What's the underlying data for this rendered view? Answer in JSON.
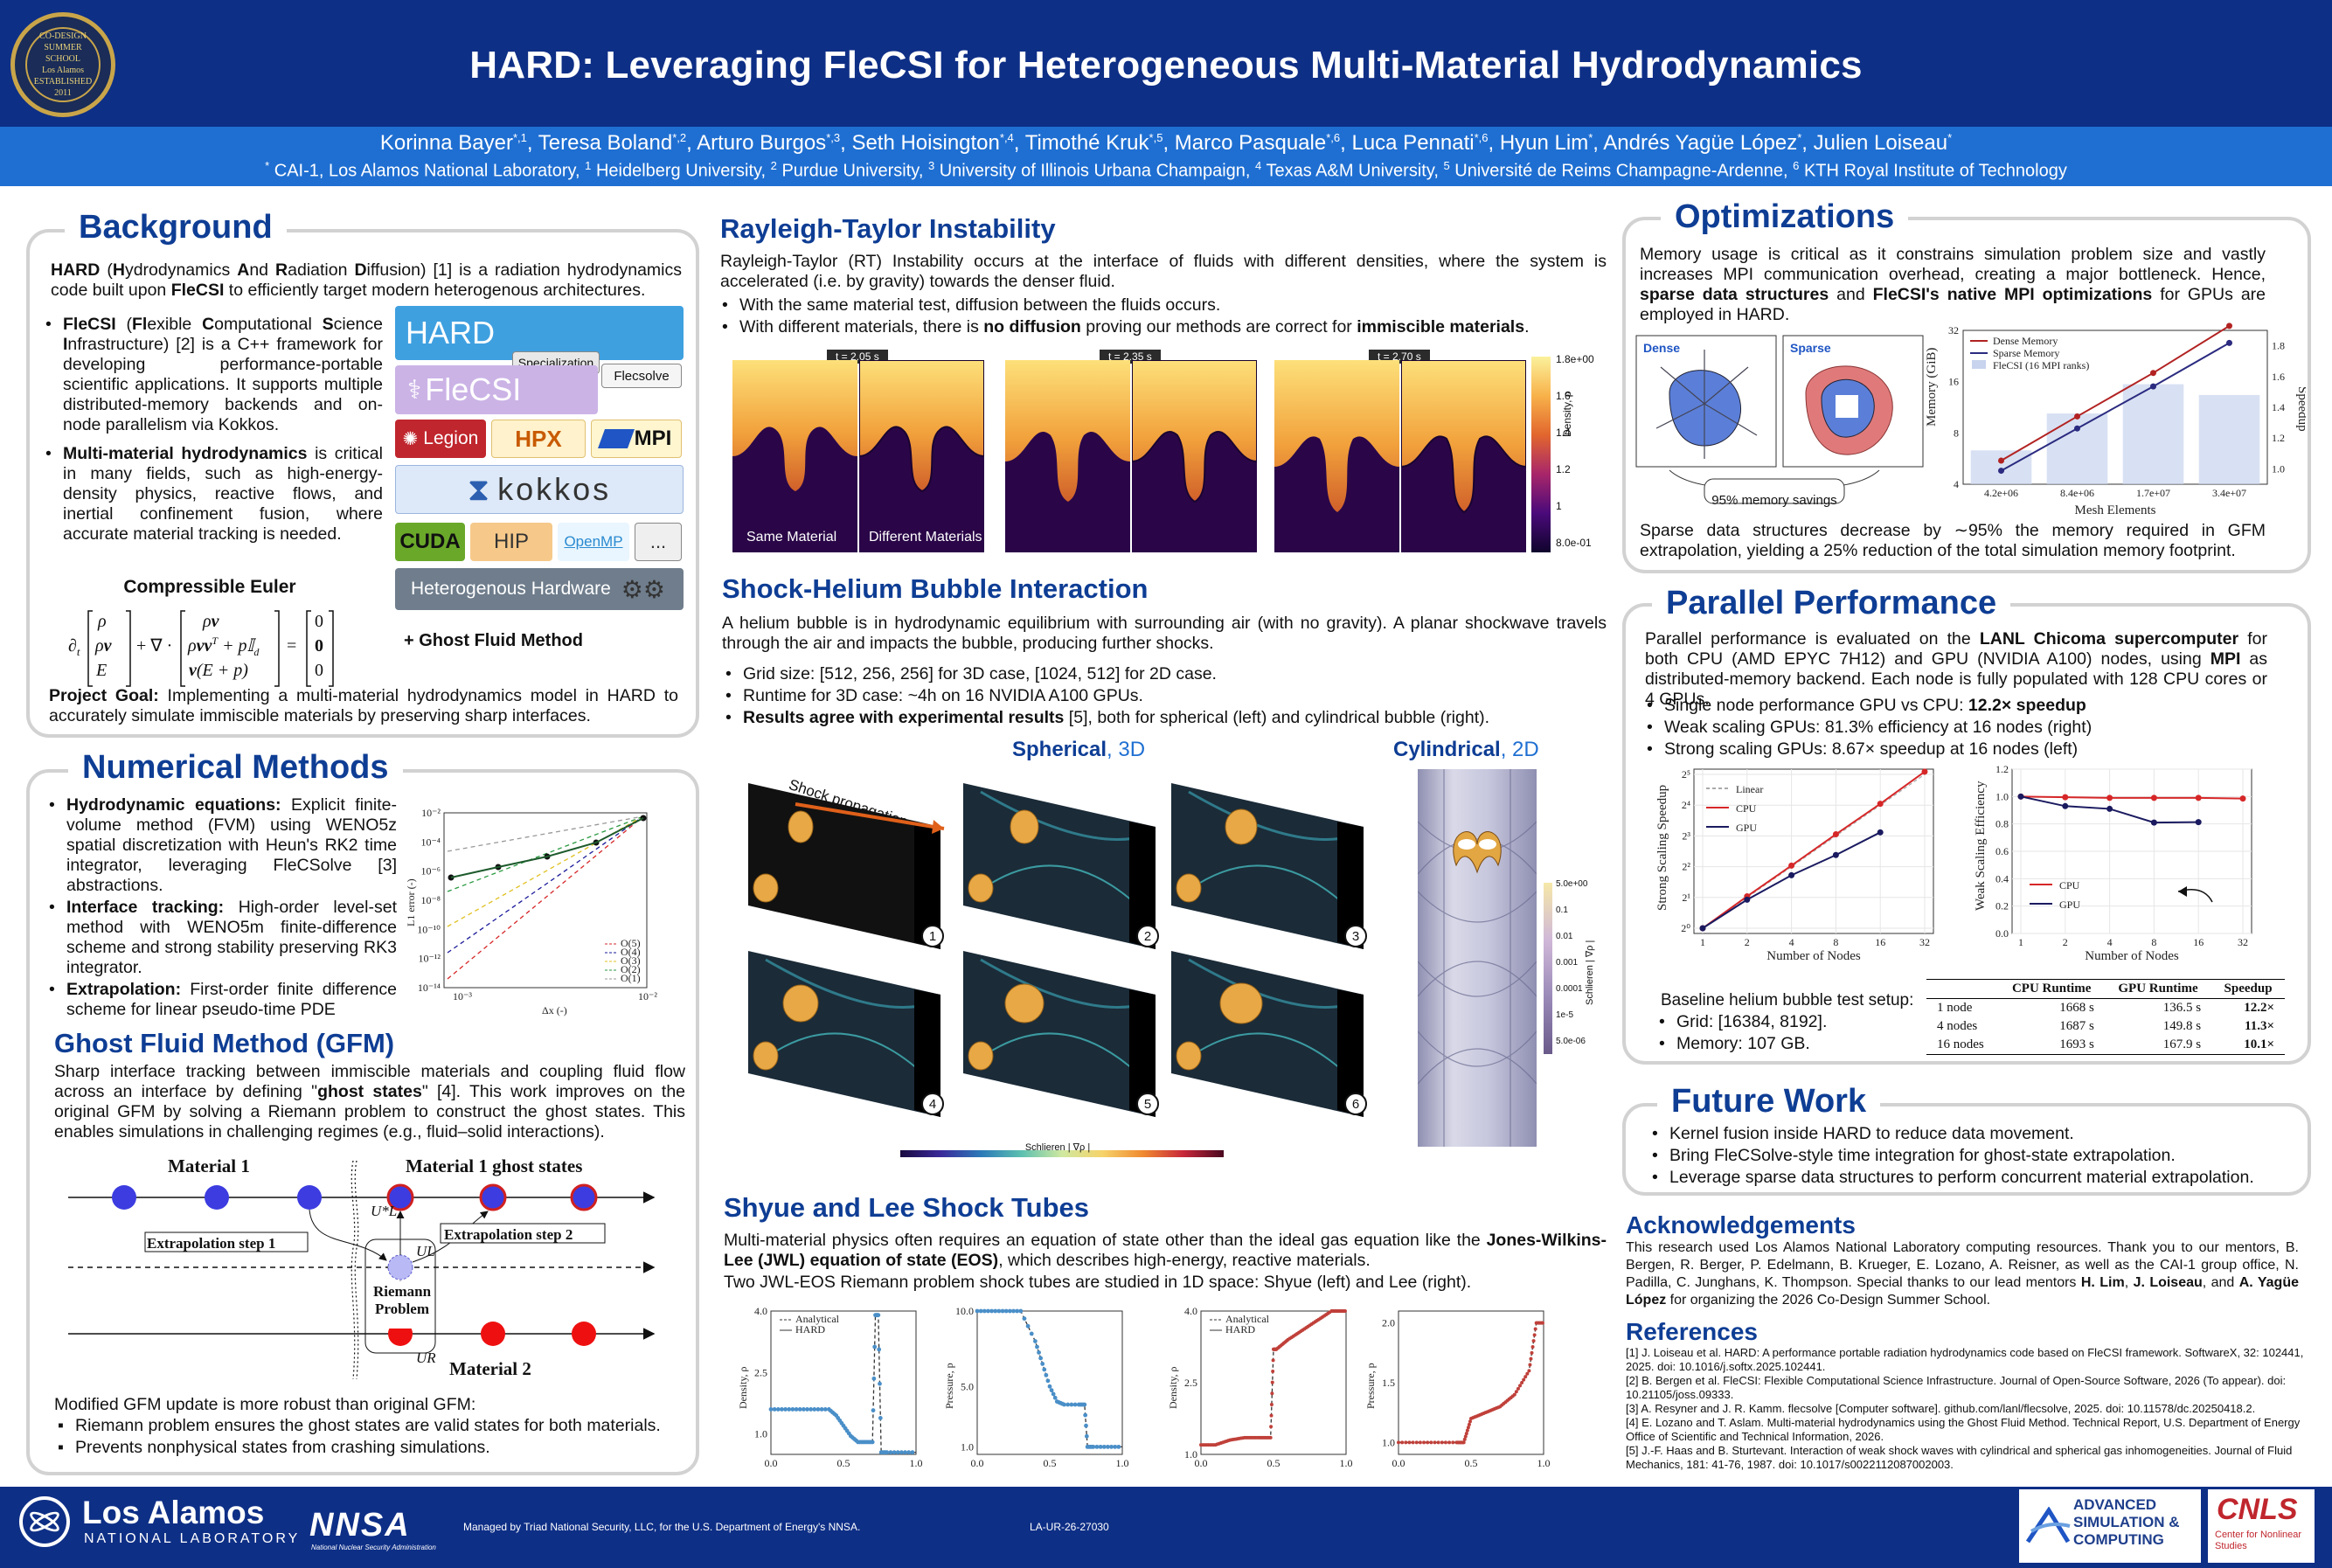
{
  "header": {
    "seal_text": [
      "CO-DESIGN SUMMER SCHOOL",
      "Los Alamos",
      "ESTABLISHED 2011"
    ],
    "title": "HARD: Leveraging FleCSI for Heterogeneous Multi-Material Hydrodynamics",
    "authors": [
      {
        "name": "Korinna Bayer",
        "sup": "*,1"
      },
      {
        "name": "Teresa Boland",
        "sup": "*,2"
      },
      {
        "name": "Arturo Burgos",
        "sup": "*,3"
      },
      {
        "name": "Seth Hoisington",
        "sup": "*,4"
      },
      {
        "name": "Timothé Kruk",
        "sup": "*,5"
      },
      {
        "name": "Marco Pasquale",
        "sup": "*,6"
      },
      {
        "name": "Luca Pennati",
        "sup": "*,6"
      },
      {
        "name": "Hyun Lim",
        "sup": "*"
      },
      {
        "name": "Andrés Yagüe López",
        "sup": "*"
      },
      {
        "name": "Julien Loiseau",
        "sup": "*"
      }
    ],
    "affiliations": [
      {
        "sup": "*",
        "name": "CAI-1, Los Alamos National Laboratory"
      },
      {
        "sup": "1",
        "name": "Heidelberg University"
      },
      {
        "sup": "2",
        "name": "Purdue University"
      },
      {
        "sup": "3",
        "name": "University of Illinois Urbana Champaign"
      },
      {
        "sup": "4",
        "name": "Texas A&M University"
      },
      {
        "sup": "5",
        "name": "Université de Reims Champagne-Ardenne"
      },
      {
        "sup": "6",
        "name": "KTH Royal Institute of Technology"
      }
    ]
  },
  "background": {
    "heading": "Background",
    "intro_html": "<b>HARD</b> (<b>H</b>ydrodynamics <b>A</b>nd <b>R</b>adiation <b>D</b>iffusion) [1] is a radiation hydrodynamics code built upon <b>FleCSI</b> to efficiently target modern heterogenous architectures.",
    "bullet1_html": "<b>FleCSI</b> (<b>Fl</b>exible <b>C</b>omputational <b>S</b>cience <b>I</b>nfrastructure) [2] is a C++ framework for developing performance-portable scientific applications. It supports multiple distributed-memory backends and on-node parallelism via Kokkos.",
    "bullet2_html": "<b>Multi-material hydrodynamics</b> is critical in many fields, such as high-energy-density physics, reactive flows, and inertial confinement fusion, where accurate material tracking is needed.",
    "euler_heading": "Compressible Euler",
    "equation": {
      "lhs": "∂t [ρ; ρv; E] + ∇ · [ρv; ρvvᵀ + pI̲d; v(E + p)] = [0; 0; 0]",
      "rhs_note": "+ Ghost Fluid Method"
    },
    "goal_html": "<b>Project Goal:</b> Implementing a multi-material hydrodynamics model in HARD to accurately simulate immiscible materials by preserving sharp interfaces.",
    "stack": {
      "hard": "HARD",
      "specialization": "Specialization",
      "flecsolve": "Flecsolve",
      "flecsi": "FleCSI",
      "legion": "Legion",
      "hpx": "HPX",
      "mpi": "MPI",
      "kokkos": "kokkos",
      "cuda": "CUDA",
      "hip": "HIP",
      "openmp": "OpenMP",
      "more": "...",
      "hardware": "Heterogenous Hardware"
    }
  },
  "numerical": {
    "heading": "Numerical Methods",
    "bullets": [
      "<b>Hydrodynamic equations:</b> Explicit finite-volume method (FVM) using WENO5z spatial discretization with Heun's RK2 time integrator, leveraging FleCSolve [3] abstractions.",
      "<b>Interface tracking:</b> High-order level-set method with WENO5m finite-difference scheme and strong stability preserving RK3 integrator.",
      "<b>Extrapolation:</b> First-order finite difference scheme for linear pseudo-time PDE"
    ],
    "conv_plot": {
      "ylabel": "L1 error (-)",
      "xlabel": "Δx (-)",
      "yticks": [
        "10⁻²",
        "10⁻⁴",
        "10⁻⁶",
        "10⁻⁸",
        "10⁻¹⁰",
        "10⁻¹²",
        "10⁻¹⁴"
      ],
      "xticks": [
        "10⁻³",
        "10⁻²"
      ],
      "legend": [
        "O(5)",
        "O(4)",
        "O(3)",
        "O(2)",
        "O(1)"
      ]
    }
  },
  "gfm": {
    "heading": "Ghost Fluid Method (GFM)",
    "text_html": "Sharp interface tracking between immiscible materials and coupling fluid flow across an interface by defining \"<b>ghost states</b>\" [4]. This work improves on the original GFM by solving a Riemann problem to construct the ghost states. This enables simulations in challenging regimes (e.g., fluid–solid interactions).",
    "diagram": {
      "material1": "Material 1",
      "ghost": "Material 1 ghost states",
      "extrap1": "Extrapolation step 1",
      "extrap2": "Extrapolation step 2",
      "riemann": "Riemann Problem",
      "material2": "Material 2",
      "ul_star": "U*L",
      "ul": "UL",
      "ur": "UR"
    },
    "conclusion": "Modified GFM update is more robust than original GFM:",
    "bullets": [
      "Riemann problem ensures the ghost states are valid states for both materials.",
      "Prevents nonphysical states from crashing simulations."
    ]
  },
  "rt": {
    "heading": "Rayleigh-Taylor Instability",
    "text": "Rayleigh-Taylor (RT) Instability occurs at the interface of fluids with different densities, where the system is accelerated (i.e. by gravity) towards the denser fluid.",
    "bullets": [
      "With the same material test, diffusion between the fluids occurs.",
      "With different materials, there is <b>no diffusion</b> proving our methods are correct for <b>immiscible materials</b>."
    ],
    "times": [
      "t = 2.05 s",
      "t = 2.35 s",
      "t = 2.70 s"
    ],
    "label_same": "Same Material",
    "label_diff": "Different Materials",
    "colorbar_ticks": [
      "1.8e+00",
      "1.6",
      "1.4",
      "1.2",
      "1",
      "8.0e-01"
    ],
    "colorbar_label": "Density, ρ"
  },
  "shock": {
    "heading": "Shock-Helium Bubble Interaction",
    "text": "A helium bubble is in hydrodynamic equilibrium with surrounding air (with no gravity). A planar shockwave travels through the air and impacts the bubble, producing further shocks.",
    "bullets": [
      "Grid size: [512, 256, 256] for 3D case, [1024, 512] for 2D case.",
      "Runtime for 3D case: ~4h on 16 NVIDIA A100 GPUs.",
      "<b>Results agree with experimental results</b> [5], both for spherical (left) and cylindrical bubble (right)."
    ],
    "spherical": "Spherical",
    "spherical_dim": ", 3D",
    "cylindrical": "Cylindrical",
    "cylindrical_dim": ", 2D",
    "propagation": "Shock propagation",
    "panel_numbers": [
      "1",
      "2",
      "3",
      "4",
      "5",
      "6"
    ],
    "schlieren_label": "Schlieren | ∇ρ |",
    "schlieren_ticks": [
      "5.0e+00",
      "0.1",
      "0.01",
      "0.001",
      "0.0001",
      "1e-5",
      "5.0e-06"
    ]
  },
  "shocktubes": {
    "heading": "Shyue and Lee Shock Tubes",
    "text_html": "Multi-material physics often requires an equation of state other than the ideal gas equation like the <b>Jones-Wilkins-Lee (JWL) equation of state (EOS)</b>, which describes high-energy, reactive materials.",
    "text2": "Two JWL-EOS Riemann problem shock tubes are studied in 1D space: Shyue (left) and Lee (right).",
    "legend": [
      "Analytical",
      "HARD"
    ],
    "ylabels": [
      "Density, ρ",
      "Pressure, p",
      "Density, ρ",
      "Pressure, p"
    ],
    "xticks": [
      "0.0",
      "0.5",
      "1.0"
    ]
  },
  "optimizations": {
    "heading": "Optimizations",
    "text_html": "Memory usage is critical as it constrains simulation problem size and vastly increases MPI communication overhead, creating a major bottleneck. Hence, <b>sparse data structures</b> and <b>FleCSI's native MPI optimizations</b> for GPUs are employed in HARD.",
    "dense": "Dense",
    "sparse": "Sparse",
    "savings": "95% memory savings",
    "result_text": "Sparse data structures decrease by ∼95% the memory required in GFM extrapolation, yielding a 25% reduction of the total simulation memory footprint."
  },
  "parallel": {
    "heading": "Parallel Performance",
    "text_html": "Parallel performance is evaluated on the <b>LANL Chicoma supercomputer</b> for both CPU (AMD EPYC 7H12) and GPU (NVIDIA A100) nodes, using <b>MPI</b> as distributed-memory backend. Each node is fully populated with 128 CPU cores or 4 GPUs.",
    "bullets": [
      "Single node performance GPU vs CPU: <b>12.2× speedup</b>",
      "Weak scaling GPUs: 81.3% efficiency at 16 nodes (right)",
      "Strong scaling GPUs: 8.67× speedup at 16 nodes (left)"
    ],
    "baseline_heading": "Baseline helium bubble test setup:",
    "baseline": [
      "Grid: [16384, 8192].",
      "Memory: 107 GB."
    ],
    "table": {
      "headers": [
        "",
        "CPU Runtime",
        "GPU Runtime",
        "Speedup"
      ],
      "rows": [
        [
          "1 node",
          "1668 s",
          "136.5 s",
          "12.2×"
        ],
        [
          "4 nodes",
          "1687 s",
          "149.8 s",
          "11.3×"
        ],
        [
          "16 nodes",
          "1693 s",
          "167.9 s",
          "10.1×"
        ]
      ]
    }
  },
  "future": {
    "heading": "Future Work",
    "bullets": [
      "Kernel fusion inside HARD to reduce data movement.",
      "Bring FleCSolve-style time integration for ghost-state extrapolation.",
      "Leverage sparse data structures to perform concurrent material extrapolation."
    ]
  },
  "ack": {
    "heading": "Acknowledgements",
    "text_html": "This research used Los Alamos National Laboratory computing resources. Thank you to our mentors, B. Bergen, R. Berger, P. Edelmann, B. Krueger, E. Lozano, A. Reisner, as well as the CAI-1 group office, N. Padilla, C. Junghans, K. Thompson. Special thanks to our lead mentors <b>H. Lim</b>, <b>J. Loiseau</b>, and <b>A. Yagüe López</b> for organizing the 2026 Co-Design Summer School."
  },
  "refs": {
    "heading": "References",
    "items": [
      "[1] J. Loiseau et al. HARD: A performance portable radiation hydrodynamics code based on FleCSI framework. SoftwareX, 32: 102441, 2025. doi: 10.1016/j.softx.2025.102441.",
      "[2] B. Bergen et al. FleCSI: Flexible Computational Science Infrastructure. Journal of Open-Source Software, 2026 (To appear). doi: 10.21105/joss.09333.",
      "[3] A. Resyner and J. R. Kamm. flecsolve [Computer software]. github.com/lanl/flecsolve, 2025. doi: 10.11578/dc.20250418.2.",
      "[4] E. Lozano and T. Aslam. Multi-material hydrodynamics using the Ghost Fluid Method. Technical Report, U.S. Department of Energy Office of Scientific and Technical Information, 2026.",
      "[5] J.-F. Haas and B. Sturtevant. Interaction of weak shock waves with cylindrical and spherical gas inhomogeneities. Journal of Fluid Mechanics, 181: 41-76, 1987. doi: 10.1017/s0022112087002003."
    ]
  },
  "footer": {
    "lanl": "Los Alamos",
    "lanl_sub": "NATIONAL LABORATORY",
    "nnsa": "NNSA",
    "nnsa_sub": "National Nuclear Security Administration",
    "managed": "Managed by Triad National Security, LLC, for the U.S. Department of Energy's NNSA.",
    "la_ur": "LA-UR-26-27030",
    "asc": "Advanced Simulation & Computing",
    "cnls": "CNLS",
    "cnls_sub": "Center for Nonlinear Studies"
  },
  "chart_data": [
    {
      "id": "memory",
      "type": "bar",
      "categories": [
        "4.2e+06",
        "8.4e+06",
        "1.7e+07",
        "3.4e+07"
      ],
      "xlabel": "Mesh Elements",
      "ylabel": "Memory (GiB)",
      "y2label": "Speedup",
      "yticks": [
        "4",
        "8",
        "16",
        "32"
      ],
      "y2ticks": [
        "1.0",
        "1.2",
        "1.4",
        "1.6",
        "1.8"
      ],
      "series": [
        {
          "name": "Dense Memory",
          "values": [
            5.5,
            10,
            18,
            34
          ],
          "color": "#b22222"
        },
        {
          "name": "Sparse Memory",
          "values": [
            4.8,
            8.5,
            15,
            27
          ],
          "color": "#2b2b80"
        },
        {
          "name": "FleCSI (16 MPI ranks)",
          "values": [
            1.12,
            1.36,
            1.55,
            1.48
          ],
          "color": "#c8d4ee"
        }
      ]
    },
    {
      "id": "strong",
      "type": "line",
      "x": [
        1,
        2,
        4,
        8,
        16,
        32
      ],
      "xlabel": "Number of Nodes",
      "ylabel": "Strong Scaling Speedup",
      "xticks": [
        "1",
        "2",
        "4",
        "8",
        "16",
        "32"
      ],
      "yticks": [
        "2⁰",
        "2¹",
        "2²",
        "2³",
        "2⁴",
        "2⁵"
      ],
      "series": [
        {
          "name": "Linear",
          "values": [
            1,
            2,
            4,
            8,
            16,
            32
          ],
          "color": "#aaaaaa"
        },
        {
          "name": "CPU",
          "values": [
            1,
            2.05,
            4.1,
            8.3,
            16.5,
            34
          ],
          "color": "#d62728"
        },
        {
          "name": "GPU",
          "values": [
            1,
            1.9,
            3.3,
            5.2,
            8.67,
            null
          ],
          "color": "#1a1a60"
        }
      ]
    },
    {
      "id": "weak",
      "type": "line",
      "x": [
        1,
        2,
        4,
        8,
        16,
        32
      ],
      "xlabel": "Number of Nodes",
      "ylabel": "Weak Scaling Efficiency",
      "xticks": [
        "1",
        "2",
        "4",
        "8",
        "16",
        "32"
      ],
      "yticks": [
        "0.0",
        "0.2",
        "0.4",
        "0.6",
        "0.8",
        "1.0",
        "1.2"
      ],
      "series": [
        {
          "name": "CPU",
          "values": [
            1.0,
            0.995,
            0.99,
            0.99,
            0.99,
            0.985
          ],
          "color": "#d62728"
        },
        {
          "name": "GPU",
          "values": [
            1.0,
            0.93,
            0.91,
            0.81,
            0.813,
            null
          ],
          "color": "#1a1a60"
        }
      ]
    },
    {
      "id": "shyue_density",
      "type": "line",
      "ylim": [
        0.5,
        4.0
      ],
      "yticks": [
        "1.0",
        "2.5",
        "4.0"
      ],
      "xticks": [
        "0.0",
        "0.5",
        "1.0"
      ],
      "x": [
        0,
        0.1,
        0.2,
        0.3,
        0.4,
        0.45,
        0.5,
        0.55,
        0.6,
        0.65,
        0.7,
        0.72,
        0.74,
        0.76,
        0.8,
        0.9,
        1.0
      ],
      "series": [
        {
          "name": "Analytical",
          "values": [
            1.6,
            1.6,
            1.6,
            1.6,
            1.6,
            1.45,
            1.2,
            0.95,
            0.8,
            0.8,
            0.8,
            3.9,
            3.9,
            0.55,
            0.55,
            0.55,
            0.55
          ]
        }
      ]
    },
    {
      "id": "shyue_pressure",
      "type": "line",
      "ylim": [
        0.5,
        10
      ],
      "yticks": [
        "1.0",
        "5.0",
        "10.0"
      ],
      "xticks": [
        "0.0",
        "0.5",
        "1.0"
      ],
      "x": [
        0,
        0.1,
        0.2,
        0.3,
        0.4,
        0.45,
        0.5,
        0.55,
        0.6,
        0.7,
        0.74,
        0.76,
        0.8,
        0.9,
        1.0
      ],
      "series": [
        {
          "name": "Analytical",
          "values": [
            10,
            10,
            10,
            10,
            8,
            6.5,
            5,
            4,
            3.8,
            3.8,
            3.8,
            1,
            1,
            1,
            1
          ]
        }
      ]
    },
    {
      "id": "lee_density",
      "type": "line",
      "ylim": [
        1.0,
        4.0
      ],
      "yticks": [
        "1.0",
        "2.5",
        "4.0"
      ],
      "xticks": [
        "0.0",
        "0.5",
        "1.0"
      ],
      "x": [
        0,
        0.1,
        0.2,
        0.3,
        0.4,
        0.48,
        0.5,
        0.52,
        0.6,
        0.7,
        0.8,
        0.9,
        0.95,
        1.0
      ],
      "series": [
        {
          "name": "Analytical",
          "values": [
            1.2,
            1.2,
            1.3,
            1.35,
            1.35,
            1.35,
            3.2,
            3.2,
            3.4,
            3.6,
            3.8,
            4.0,
            4.0,
            4.0
          ]
        }
      ]
    },
    {
      "id": "lee_pressure",
      "type": "line",
      "ylim": [
        0.9,
        2.1
      ],
      "yticks": [
        "1.0",
        "1.5",
        "2.0"
      ],
      "xticks": [
        "0.0",
        "0.5",
        "1.0"
      ],
      "x": [
        0,
        0.2,
        0.4,
        0.45,
        0.5,
        0.6,
        0.7,
        0.8,
        0.9,
        0.95,
        1.0
      ],
      "series": [
        {
          "name": "Analytical",
          "values": [
            1.0,
            1.0,
            1.0,
            1.0,
            1.2,
            1.25,
            1.3,
            1.4,
            1.6,
            2.0,
            2.0
          ]
        }
      ]
    }
  ]
}
